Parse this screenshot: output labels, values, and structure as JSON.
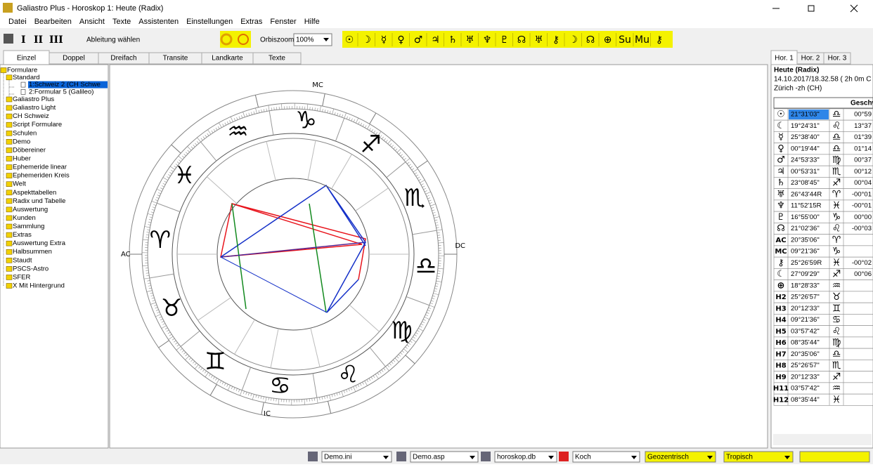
{
  "title": "Galiastro Plus - Horoskop 1: Heute (Radix)",
  "menu": [
    "Datei",
    "Bearbeiten",
    "Ansicht",
    "Texte",
    "Assistenten",
    "Einstellungen",
    "Extras",
    "Fenster",
    "Hilfe"
  ],
  "toolbar": {
    "forms": [
      "I",
      "II",
      "III"
    ],
    "derive": "Ableitung wählen",
    "orbis_label": "Orbiszoom:",
    "orbis_value": "100%",
    "planets": [
      "☉",
      "☽",
      "☿",
      "♀",
      "♂",
      "♃",
      "♄",
      "♅",
      "♆",
      "♇",
      "☊",
      "♅",
      "⚷",
      "☽",
      "☊",
      "⊕",
      "Su",
      "Mu",
      "⚷"
    ]
  },
  "tabs": [
    "Einzel",
    "Doppel",
    "Dreifach",
    "Transite",
    "Landkarte",
    "Texte"
  ],
  "tree": {
    "root": "Formulare",
    "standard": "Standard",
    "forms": [
      "1:Schweiz 2 (CH Schwe",
      "2:Formular 5 (Galileo)"
    ],
    "folders": [
      "Galiastro Plus",
      "Galiastro Light",
      "CH Schweiz",
      "Script Formulare",
      "Schulen",
      "Demo",
      "Döbereiner",
      "Huber",
      "Ephemeride linear",
      "Ephemeriden Kreis",
      "Welt",
      "Aspekttabellen",
      "Radix und Tabelle",
      "Auswertung",
      "Kunden",
      "Sammlung",
      "Extras",
      "Auswertung Extra",
      "Halbsummen",
      "Staudt",
      "PSCS-Astro",
      "SFER",
      "X Mit Hintergrund"
    ]
  },
  "wheel": {
    "signs": [
      {
        "glyph": "♈",
        "color": "#e8141c"
      },
      {
        "glyph": "♉",
        "color": "#138a1f"
      },
      {
        "glyph": "♊",
        "color": "#f2e600"
      },
      {
        "glyph": "♋",
        "color": "#1430c8"
      },
      {
        "glyph": "♌",
        "color": "#e8141c"
      },
      {
        "glyph": "♍",
        "color": "#138a1f"
      },
      {
        "glyph": "♎",
        "color": "#f2e600"
      },
      {
        "glyph": "♏",
        "color": "#1430c8"
      },
      {
        "glyph": "♐",
        "color": "#e8141c"
      },
      {
        "glyph": "♑",
        "color": "#138a1f"
      },
      {
        "glyph": "♒",
        "color": "#f2e600"
      },
      {
        "glyph": "♓",
        "color": "#1430c8"
      }
    ],
    "ac": "AC",
    "dc": "DC",
    "mc": "MC",
    "ic": "IC"
  },
  "panel": {
    "tabs": [
      "Hor. 1",
      "Hor. 2",
      "Hor. 3"
    ],
    "name": "Heute (Radix)",
    "date": "14.10.2017/18.32.58 ( 2h 0m C",
    "place": "Zürich -zh (CH)",
    "speed_header": "Geschw",
    "rows": [
      {
        "glyph": "☉",
        "color": "#e8141c",
        "pos": "21°31'03\"",
        "sign": "♎",
        "speed": "00°59"
      },
      {
        "glyph": "☾",
        "color": "#e8141c",
        "pos": "19°24'31\"",
        "sign": "♌",
        "speed": "13°37"
      },
      {
        "glyph": "☿",
        "color": "#1430c8",
        "pos": "25°38'40\"",
        "sign": "♎",
        "speed": "01°39"
      },
      {
        "glyph": "♀",
        "color": "#1430c8",
        "pos": "00°19'44\"",
        "sign": "♎",
        "speed": "01°14"
      },
      {
        "glyph": "♂",
        "color": "#1430c8",
        "pos": "24°53'33\"",
        "sign": "♍",
        "speed": "00°37"
      },
      {
        "glyph": "♃",
        "color": "#1430c8",
        "pos": "00°53'31\"",
        "sign": "♏",
        "speed": "00°12"
      },
      {
        "glyph": "♄",
        "color": "#e8141c",
        "pos": "23°08'45\"",
        "sign": "♐",
        "speed": "00°04"
      },
      {
        "glyph": "♅",
        "color": "#1430c8",
        "pos": "26°43'44R",
        "sign": "♈",
        "speed": "-00°01"
      },
      {
        "glyph": "♆",
        "color": "#1430c8",
        "pos": "11°52'15R",
        "sign": "♓",
        "speed": "-00°01"
      },
      {
        "glyph": "♇",
        "color": "#1430c8",
        "pos": "16°55'00\"",
        "sign": "♑",
        "speed": "00°00"
      },
      {
        "glyph": "☊",
        "color": "#e8141c",
        "pos": "21°02'36\"",
        "sign": "♌",
        "speed": "-00°03"
      },
      {
        "glyph": "AC",
        "color": "#e8141c",
        "pos": "20°35'06\"",
        "sign": "♈"
      },
      {
        "glyph": "MC",
        "color": "#e8141c",
        "pos": "09°21'36\"",
        "sign": "♑"
      },
      {
        "glyph": "⚷",
        "color": "#1430c8",
        "pos": "25°26'59R",
        "sign": "♓",
        "speed": "-00°02"
      },
      {
        "glyph": "☾",
        "color": "#1430c8",
        "pos": "27°09'29\"",
        "sign": "♐",
        "speed": "00°06"
      },
      {
        "glyph": "⊕",
        "color": "#1430c8",
        "pos": "18°28'33\"",
        "sign": "♒"
      },
      {
        "glyph": "H2",
        "color": "#000000",
        "pos": "25°26'57\"",
        "sign": "♉"
      },
      {
        "glyph": "H3",
        "color": "#000000",
        "pos": "20°12'33\"",
        "sign": "♊"
      },
      {
        "glyph": "H4",
        "color": "#000000",
        "pos": "09°21'36\"",
        "sign": "♋"
      },
      {
        "glyph": "H5",
        "color": "#000000",
        "pos": "03°57'42\"",
        "sign": "♌"
      },
      {
        "glyph": "H6",
        "color": "#000000",
        "pos": "08°35'44\"",
        "sign": "♍"
      },
      {
        "glyph": "H7",
        "color": "#000000",
        "pos": "20°35'06\"",
        "sign": "♎"
      },
      {
        "glyph": "H8",
        "color": "#000000",
        "pos": "25°26'57\"",
        "sign": "♏"
      },
      {
        "glyph": "H9",
        "color": "#000000",
        "pos": "20°12'33\"",
        "sign": "♐"
      },
      {
        "glyph": "H11",
        "color": "#000000",
        "pos": "03°57'42\"",
        "sign": "♒"
      },
      {
        "glyph": "H12",
        "color": "#000000",
        "pos": "08°35'44\"",
        "sign": "♓"
      }
    ]
  },
  "status": [
    "Demo.ini",
    "Demo.asp",
    "horoskop.db",
    "Koch",
    "Geozentrisch",
    "Tropisch"
  ]
}
